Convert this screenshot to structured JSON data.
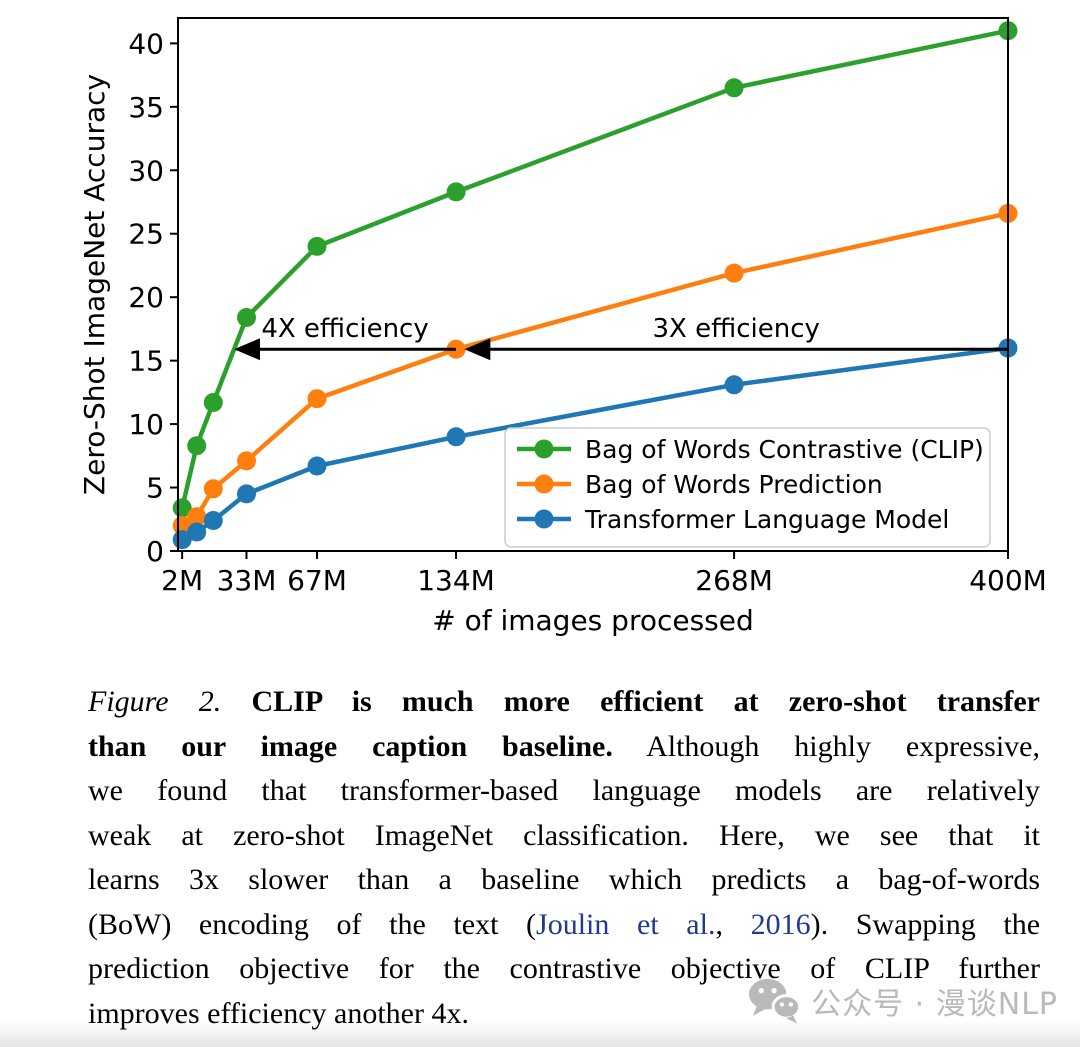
{
  "figure": {
    "chart_data": {
      "type": "line",
      "title": "",
      "xlabel": "# of images processed",
      "ylabel": "Zero-Shot ImageNet Accuracy",
      "xlim": [
        0,
        400
      ],
      "ylim": [
        0,
        42
      ],
      "grid": false,
      "x_ticks": [
        {
          "value": 2,
          "label": "2M"
        },
        {
          "value": 33,
          "label": "33M"
        },
        {
          "value": 67,
          "label": "67M"
        },
        {
          "value": 134,
          "label": "134M"
        },
        {
          "value": 268,
          "label": "268M"
        },
        {
          "value": 400,
          "label": "400M"
        }
      ],
      "y_ticks": [
        0,
        5,
        10,
        15,
        20,
        25,
        30,
        35,
        40
      ],
      "x": [
        2,
        9,
        17,
        33,
        67,
        134,
        268,
        400
      ],
      "series": [
        {
          "name": "Bag of Words Contrastive (CLIP)",
          "color": "#2ca02c",
          "values": [
            3.4,
            8.3,
            11.7,
            18.4,
            24.0,
            28.3,
            36.5,
            41.0
          ]
        },
        {
          "name": "Bag of Words Prediction",
          "color": "#ff7f0e",
          "values": [
            2.0,
            2.7,
            4.9,
            7.1,
            12.0,
            15.9,
            21.9,
            26.6
          ]
        },
        {
          "name": "Transformer Language Model",
          "color": "#1f77b4",
          "values": [
            0.9,
            1.5,
            2.4,
            4.5,
            6.7,
            9.0,
            13.1,
            16.0
          ]
        }
      ],
      "annotations": [
        {
          "type": "arrow",
          "label": "4X efficiency",
          "y": 15.9,
          "x_from": 134,
          "x_to": 27
        },
        {
          "type": "arrow",
          "label": "3X efficiency",
          "y": 15.9,
          "x_from": 400,
          "x_to": 138
        }
      ],
      "legend": {
        "position": "lower right",
        "entries": [
          "Bag of Words Contrastive (CLIP)",
          "Bag of Words Prediction",
          "Transformer Language Model"
        ]
      },
      "colors": {
        "arrow": "#000000",
        "axis": "#000000",
        "legend_border": "#cccccc"
      }
    }
  },
  "caption": {
    "lines": [
      {
        "segments": [
          {
            "text": "Figure 2. ",
            "style": "italic"
          },
          {
            "text": "CLIP is much more efficient at zero-shot transfer",
            "style": "bold"
          }
        ]
      },
      {
        "segments": [
          {
            "text": "than our image caption baseline.",
            "style": "bold"
          },
          {
            "text": " Although highly expressive,",
            "style": "regular"
          }
        ]
      },
      {
        "segments": [
          {
            "text": "we found that transformer-based language models are relatively",
            "style": "regular"
          }
        ]
      },
      {
        "segments": [
          {
            "text": "weak at zero-shot ImageNet classification. Here, we see that it",
            "style": "regular"
          }
        ]
      },
      {
        "segments": [
          {
            "text": "learns 3x slower than a baseline which predicts a bag-of-words",
            "style": "regular"
          }
        ]
      },
      {
        "segments": [
          {
            "text": "(BoW) encoding of the text (",
            "style": "regular"
          },
          {
            "text": "Joulin et al.",
            "style": "link"
          },
          {
            "text": ", ",
            "style": "regular"
          },
          {
            "text": "2016",
            "style": "link"
          },
          {
            "text": "). Swapping the",
            "style": "regular"
          }
        ]
      },
      {
        "segments": [
          {
            "text": "prediction objective for the contrastive objective of CLIP further",
            "style": "regular"
          }
        ]
      },
      {
        "segments": [
          {
            "text": "improves efficiency another 4x.",
            "style": "regular"
          }
        ]
      }
    ],
    "link_color": "#1f3a93"
  },
  "watermark": {
    "icon": "wechat-icon",
    "text": "公众号 · 漫谈NLP",
    "color": "#b9b9b9"
  }
}
